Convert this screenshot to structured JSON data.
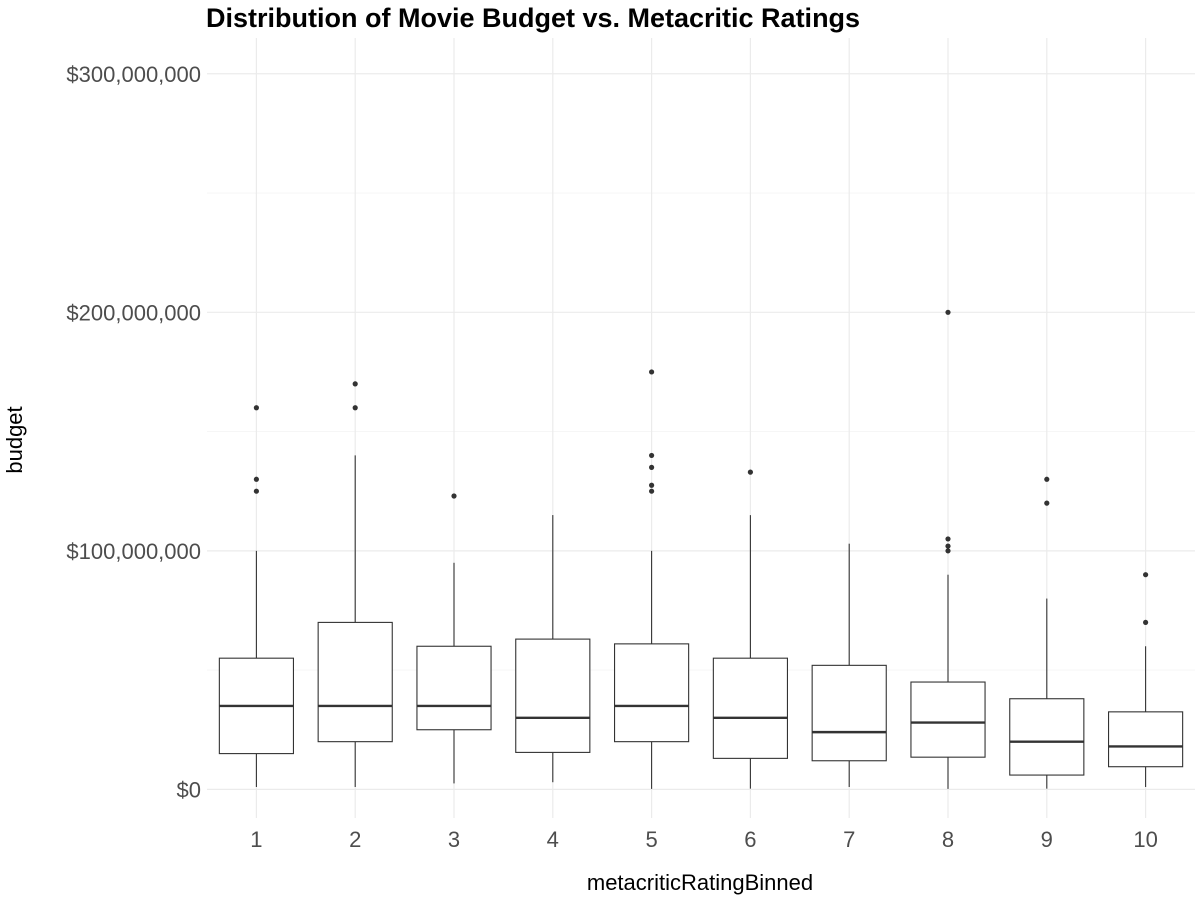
{
  "chart_data": {
    "type": "boxplot",
    "title": "Distribution of Movie Budget vs. Metacritic Ratings",
    "xlabel": "metacriticRatingBinned",
    "ylabel": "budget",
    "ylim": [
      -12000000,
      315000000
    ],
    "y_ticks": [
      0,
      100000000,
      200000000,
      300000000
    ],
    "y_tick_labels": [
      "$0",
      "$100,000,000",
      "$200,000,000",
      "$300,000,000"
    ],
    "y_minor_ticks": [
      50000000,
      150000000,
      250000000
    ],
    "grid": true,
    "categories": [
      "1",
      "2",
      "3",
      "4",
      "5",
      "6",
      "7",
      "8",
      "9",
      "10"
    ],
    "boxes": [
      {
        "category": "1",
        "whisker_low": 1000000,
        "q1": 15000000,
        "median": 35000000,
        "q3": 55000000,
        "whisker_high": 100000000,
        "outliers": [
          125000000,
          130000000,
          160000000
        ]
      },
      {
        "category": "2",
        "whisker_low": 1000000,
        "q1": 20000000,
        "median": 35000000,
        "q3": 70000000,
        "whisker_high": 140000000,
        "outliers": [
          160000000,
          170000000
        ]
      },
      {
        "category": "3",
        "whisker_low": 2500000,
        "q1": 25000000,
        "median": 35000000,
        "q3": 60000000,
        "whisker_high": 95000000,
        "outliers": [
          123000000
        ]
      },
      {
        "category": "4",
        "whisker_low": 3000000,
        "q1": 15500000,
        "median": 30000000,
        "q3": 63000000,
        "whisker_high": 115000000,
        "outliers": []
      },
      {
        "category": "5",
        "whisker_low": 200000,
        "q1": 20000000,
        "median": 35000000,
        "q3": 61000000,
        "whisker_high": 100000000,
        "outliers": [
          125000000,
          127500000,
          135000000,
          140000000,
          175000000
        ]
      },
      {
        "category": "6",
        "whisker_low": 300000,
        "q1": 13000000,
        "median": 30000000,
        "q3": 55000000,
        "whisker_high": 115000000,
        "outliers": [
          133000000
        ]
      },
      {
        "category": "7",
        "whisker_low": 1000000,
        "q1": 12000000,
        "median": 24000000,
        "q3": 52000000,
        "whisker_high": 103000000,
        "outliers": []
      },
      {
        "category": "8",
        "whisker_low": 200000,
        "q1": 13500000,
        "median": 28000000,
        "q3": 45000000,
        "whisker_high": 90000000,
        "outliers": [
          100000000,
          102000000,
          105000000,
          200000000
        ]
      },
      {
        "category": "9",
        "whisker_low": 300000,
        "q1": 6000000,
        "median": 20000000,
        "q3": 38000000,
        "whisker_high": 80000000,
        "outliers": [
          120000000,
          130000000
        ]
      },
      {
        "category": "10",
        "whisker_low": 1000000,
        "q1": 9500000,
        "median": 18000000,
        "q3": 32500000,
        "whisker_high": 60000000,
        "outliers": [
          70000000,
          90000000
        ]
      }
    ]
  }
}
